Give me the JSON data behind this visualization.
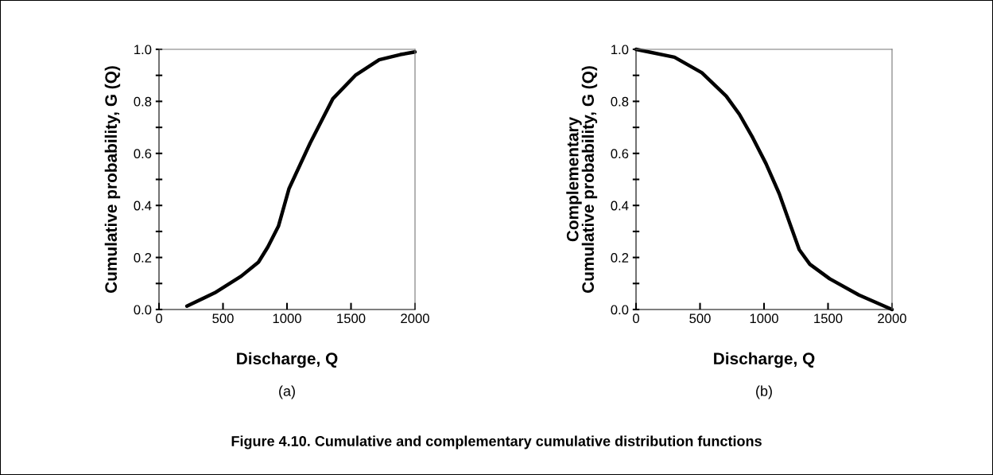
{
  "chart_data": [
    {
      "type": "line",
      "xlabel": "Discharge, Q",
      "ylabel": "Cumulative probability, G (Q)",
      "annotations": [
        "(a)"
      ],
      "x": [
        218,
        435,
        642,
        777,
        850,
        933,
        1016,
        1181,
        1358,
        1534,
        1720,
        1886,
        2000
      ],
      "series": [
        {
          "color": "#000000",
          "values": [
            0.013,
            0.064,
            0.128,
            0.182,
            0.24,
            0.32,
            0.465,
            0.64,
            0.81,
            0.9,
            0.96,
            0.98,
            0.99
          ]
        }
      ],
      "xlim": [
        0,
        2000
      ],
      "xticks": [
        0,
        500,
        1000,
        1500,
        2000
      ],
      "ylim": [
        0,
        1.0
      ],
      "yticks": [
        {
          "value": 0,
          "label": "0.0"
        },
        {
          "value": 0.1,
          "label": null
        },
        {
          "value": 0.2,
          "label": "0.2"
        },
        {
          "value": 0.3,
          "label": null
        },
        {
          "value": 0.4,
          "label": "0.4"
        },
        {
          "value": 0.5,
          "label": null
        },
        {
          "value": 0.6,
          "label": "0.6"
        },
        {
          "value": 0.7,
          "label": null
        },
        {
          "value": 0.8,
          "label": "0.8"
        },
        {
          "value": 0.9,
          "label": null
        },
        {
          "value": 1.0,
          "label": "1.0"
        }
      ],
      "grid": false
    },
    {
      "type": "line",
      "xlabel": "Discharge, Q",
      "ylabel": "Complementary\nCumulative probability, G (Q)",
      "annotations": [
        "(b)",
        "Figure 4.10. Cumulative and complementary cumulative distribution functions"
      ],
      "x": [
        0,
        300,
        514,
        705,
        808,
        912,
        1016,
        1119,
        1202,
        1275,
        1358,
        1513,
        1741,
        2000
      ],
      "series": [
        {
          "color": "#000000",
          "values": [
            1.0,
            0.97,
            0.91,
            0.82,
            0.75,
            0.66,
            0.56,
            0.445,
            0.33,
            0.23,
            0.174,
            0.118,
            0.056,
            0.0
          ]
        }
      ],
      "xlim": [
        0,
        2000
      ],
      "xticks": [
        0,
        500,
        1000,
        1500,
        2000
      ],
      "ylim": [
        0,
        1.0
      ],
      "yticks": [
        {
          "value": 0,
          "label": "0.0"
        },
        {
          "value": 0.1,
          "label": null
        },
        {
          "value": 0.2,
          "label": "0.2"
        },
        {
          "value": 0.3,
          "label": null
        },
        {
          "value": 0.4,
          "label": "0.4"
        },
        {
          "value": 0.5,
          "label": null
        },
        {
          "value": 0.6,
          "label": "0.6"
        },
        {
          "value": 0.7,
          "label": null
        },
        {
          "value": 0.8,
          "label": "0.8"
        },
        {
          "value": 0.9,
          "label": null
        },
        {
          "value": 1.0,
          "label": "1.0"
        }
      ],
      "grid": false
    }
  ]
}
